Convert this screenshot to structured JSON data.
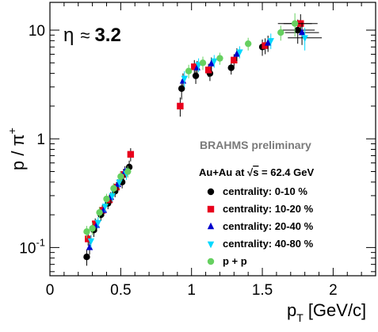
{
  "chart_data": {
    "type": "scatter",
    "title": "",
    "annotation": {
      "eta_symbol": "η",
      "approx": "≈",
      "eta_value": "3.2"
    },
    "preliminary_label": "BRAHMS preliminary",
    "x_axis": {
      "label_main": "p",
      "label_sub": "T",
      "label_unit": "[GeV/c]",
      "range": [
        0,
        2.3
      ],
      "ticks": [
        0,
        0.5,
        1,
        1.5,
        2
      ],
      "tick_labels": [
        "0",
        "0.5",
        "1",
        "1.5",
        "2"
      ]
    },
    "y_axis": {
      "label_main": "p / π",
      "label_sup": "+",
      "scale": "log",
      "range": [
        0.055,
        18
      ],
      "ticks": [
        0.1,
        1,
        10
      ],
      "tick_labels": [
        {
          "base": "10",
          "exp": "-1"
        },
        {
          "base": "1",
          "exp": ""
        },
        {
          "base": "10",
          "exp": ""
        }
      ]
    },
    "legend": {
      "title_prefix": "Au+Au at ",
      "title_sqrt": "√",
      "title_s": "s",
      "title_suffix": " = 62.4 GeV",
      "placement": "bottom-right"
    },
    "series": [
      {
        "name": "centrality: 0-10 %",
        "color": "#000000",
        "marker": "circle",
        "points": [
          {
            "x": 0.26,
            "y": 0.082,
            "err": 0.014
          },
          {
            "x": 0.31,
            "y": 0.145,
            "err": 0.02
          },
          {
            "x": 0.36,
            "y": 0.2,
            "err": 0.025
          },
          {
            "x": 0.41,
            "y": 0.255,
            "err": 0.03
          },
          {
            "x": 0.46,
            "y": 0.33,
            "err": 0.04
          },
          {
            "x": 0.51,
            "y": 0.4,
            "err": 0.05
          },
          {
            "x": 0.56,
            "y": 0.55,
            "err": 0.08
          },
          {
            "x": 0.93,
            "y": 2.9,
            "err": 0.6
          },
          {
            "x": 1.03,
            "y": 3.8,
            "err": 0.6
          },
          {
            "x": 1.13,
            "y": 4.0,
            "err": 0.6
          },
          {
            "x": 1.28,
            "y": 4.5,
            "err": 0.6
          },
          {
            "x": 1.5,
            "y": 7.0,
            "err": 1.2
          },
          {
            "x": 1.75,
            "y": 10.0,
            "err": 2.5,
            "xerr": 0.12
          }
        ]
      },
      {
        "name": "centrality: 10-20 %",
        "color": "#e8001c",
        "marker": "square",
        "points": [
          {
            "x": 0.27,
            "y": 0.12,
            "err": 0.016
          },
          {
            "x": 0.32,
            "y": 0.165,
            "err": 0.02
          },
          {
            "x": 0.37,
            "y": 0.22,
            "err": 0.026
          },
          {
            "x": 0.42,
            "y": 0.275,
            "err": 0.032
          },
          {
            "x": 0.47,
            "y": 0.36,
            "err": 0.04
          },
          {
            "x": 0.52,
            "y": 0.47,
            "err": 0.06
          },
          {
            "x": 0.57,
            "y": 0.72,
            "err": 0.1
          },
          {
            "x": 0.92,
            "y": 2.0,
            "err": 0.4
          },
          {
            "x": 1.02,
            "y": 4.6,
            "err": 0.7
          },
          {
            "x": 1.12,
            "y": 4.3,
            "err": 0.6
          },
          {
            "x": 1.3,
            "y": 5.3,
            "err": 0.7
          },
          {
            "x": 1.52,
            "y": 7.2,
            "err": 1.2
          },
          {
            "x": 1.77,
            "y": 11.5,
            "err": 2.5,
            "xerr": 0.12
          }
        ]
      },
      {
        "name": "centrality: 20-40 %",
        "color": "#0000cc",
        "marker": "triangle-up",
        "points": [
          {
            "x": 0.28,
            "y": 0.1,
            "err": 0.014
          },
          {
            "x": 0.33,
            "y": 0.16,
            "err": 0.02
          },
          {
            "x": 0.38,
            "y": 0.22,
            "err": 0.026
          },
          {
            "x": 0.43,
            "y": 0.29,
            "err": 0.034
          },
          {
            "x": 0.48,
            "y": 0.38,
            "err": 0.045
          },
          {
            "x": 0.53,
            "y": 0.5,
            "err": 0.06
          },
          {
            "x": 0.94,
            "y": 3.4,
            "err": 0.6
          },
          {
            "x": 1.04,
            "y": 4.5,
            "err": 0.7
          },
          {
            "x": 1.14,
            "y": 4.9,
            "err": 0.7
          },
          {
            "x": 1.32,
            "y": 6.0,
            "err": 0.8
          },
          {
            "x": 1.54,
            "y": 7.6,
            "err": 1.3
          },
          {
            "x": 1.78,
            "y": 9.5,
            "err": 2.2,
            "xerr": 0.12
          }
        ]
      },
      {
        "name": "centrality: 40-80 %",
        "color": "#00d8ff",
        "marker": "triangle-down",
        "points": [
          {
            "x": 0.29,
            "y": 0.115,
            "err": 0.015
          },
          {
            "x": 0.34,
            "y": 0.17,
            "err": 0.02
          },
          {
            "x": 0.39,
            "y": 0.24,
            "err": 0.028
          },
          {
            "x": 0.44,
            "y": 0.3,
            "err": 0.035
          },
          {
            "x": 0.49,
            "y": 0.4,
            "err": 0.05
          },
          {
            "x": 0.54,
            "y": 0.48,
            "err": 0.06
          },
          {
            "x": 0.95,
            "y": 3.6,
            "err": 0.6
          },
          {
            "x": 1.05,
            "y": 4.8,
            "err": 0.7
          },
          {
            "x": 1.16,
            "y": 5.2,
            "err": 0.7
          },
          {
            "x": 1.34,
            "y": 6.3,
            "err": 0.8
          },
          {
            "x": 1.56,
            "y": 8.0,
            "err": 1.3
          },
          {
            "x": 1.8,
            "y": 8.5,
            "err": 2.0,
            "xerr": 0.12
          }
        ]
      },
      {
        "name": "p + p",
        "color": "#66d060",
        "marker": "circle",
        "points": [
          {
            "x": 0.26,
            "y": 0.14,
            "err": 0.018
          },
          {
            "x": 0.3,
            "y": 0.15,
            "err": 0.02
          },
          {
            "x": 0.35,
            "y": 0.21,
            "err": 0.025
          },
          {
            "x": 0.4,
            "y": 0.28,
            "err": 0.032
          },
          {
            "x": 0.45,
            "y": 0.35,
            "err": 0.04
          },
          {
            "x": 0.5,
            "y": 0.45,
            "err": 0.05
          },
          {
            "x": 0.55,
            "y": 0.5,
            "err": 0.06
          },
          {
            "x": 0.98,
            "y": 4.2,
            "err": 0.6
          },
          {
            "x": 1.08,
            "y": 5.0,
            "err": 0.7
          },
          {
            "x": 1.2,
            "y": 5.5,
            "err": 0.7
          },
          {
            "x": 1.4,
            "y": 7.5,
            "err": 1.0
          },
          {
            "x": 1.63,
            "y": 9.5,
            "err": 1.5
          },
          {
            "x": 1.73,
            "y": 11.5,
            "err": 2.8,
            "xerr": 0.12
          }
        ]
      }
    ]
  }
}
